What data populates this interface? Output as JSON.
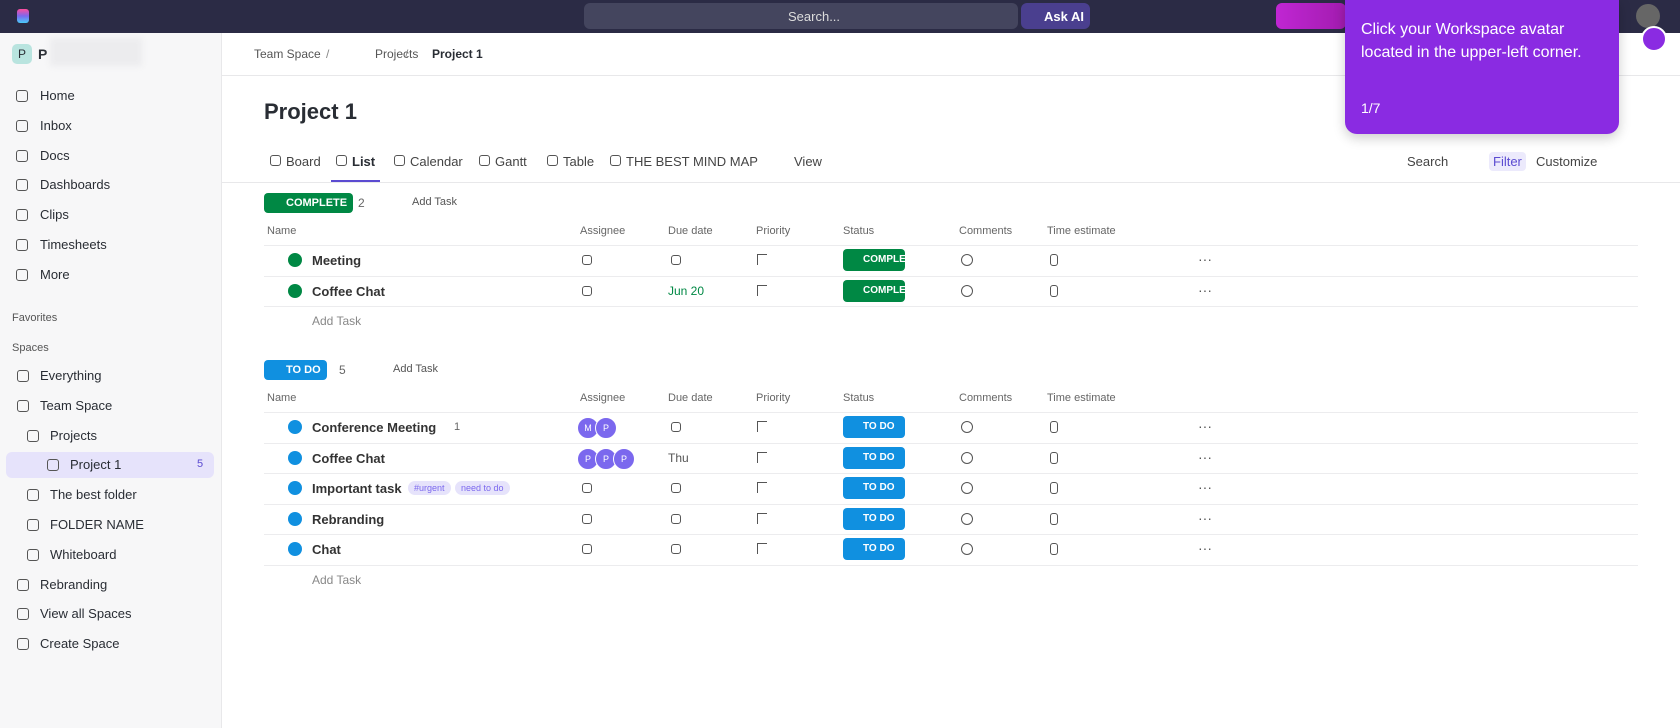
{
  "topbar": {
    "search": "Search...",
    "ask_ai": "Ask AI"
  },
  "workspace": {
    "initial": "P",
    "name": "P"
  },
  "sidebar": {
    "nav": [
      "Home",
      "Inbox",
      "Docs",
      "Dashboards",
      "Clips",
      "Timesheets",
      "More"
    ],
    "favorites": "Favorites",
    "spaces_label": "Spaces",
    "spaces": [
      {
        "label": "Everything"
      },
      {
        "label": "Team Space"
      },
      {
        "label": "Projects"
      },
      {
        "label": "Project 1",
        "count": "5"
      },
      {
        "label": "The best folder"
      },
      {
        "label": "FOLDER NAME"
      },
      {
        "label": "Whiteboard"
      },
      {
        "label": "Rebranding"
      },
      {
        "label": "View all Spaces"
      },
      {
        "label": "Create Space"
      }
    ]
  },
  "breadcrumb": [
    "Team Space",
    "Projects",
    "Project 1"
  ],
  "page": {
    "title": "Project 1",
    "views": [
      "Board",
      "List",
      "Calendar",
      "Gantt",
      "Table",
      "THE BEST MIND MAP"
    ],
    "add_view": "View",
    "actions": [
      "Search",
      "Filter",
      "Customize"
    ]
  },
  "groups": [
    {
      "status": "COMPLETE",
      "count": "2",
      "add_task": "Add Task",
      "columns": [
        "Name",
        "Assignee",
        "Due date",
        "Priority",
        "Status",
        "Comments",
        "Time estimate"
      ],
      "tasks": [
        {
          "name": "Meeting",
          "status": "COMPLETE"
        },
        {
          "name": "Coffee Chat",
          "due": "Jun 20",
          "status": "COMPLETE"
        }
      ],
      "add_row": "Add Task"
    },
    {
      "status": "TO DO",
      "count": "5",
      "add_task": "Add Task",
      "columns": [
        "Name",
        "Assignee",
        "Due date",
        "Priority",
        "Status",
        "Comments",
        "Time estimate"
      ],
      "tasks": [
        {
          "name": "Conference Meeting",
          "subtasks": "1",
          "assignees": [
            "M",
            "P"
          ],
          "status": "TO DO"
        },
        {
          "name": "Coffee Chat",
          "assignees": [
            "P",
            "P",
            "P"
          ],
          "due": "Thu",
          "status": "TO DO"
        },
        {
          "name": "Important task",
          "tags": [
            "#urgent",
            "need to do"
          ],
          "status": "TO DO"
        },
        {
          "name": "Rebranding",
          "status": "TO DO"
        },
        {
          "name": "Chat",
          "status": "TO DO"
        }
      ],
      "add_row": "Add Task"
    }
  ],
  "tooltip": {
    "text": "Click your Workspace avatar located in the upper-left corner.",
    "step": "1/7"
  }
}
